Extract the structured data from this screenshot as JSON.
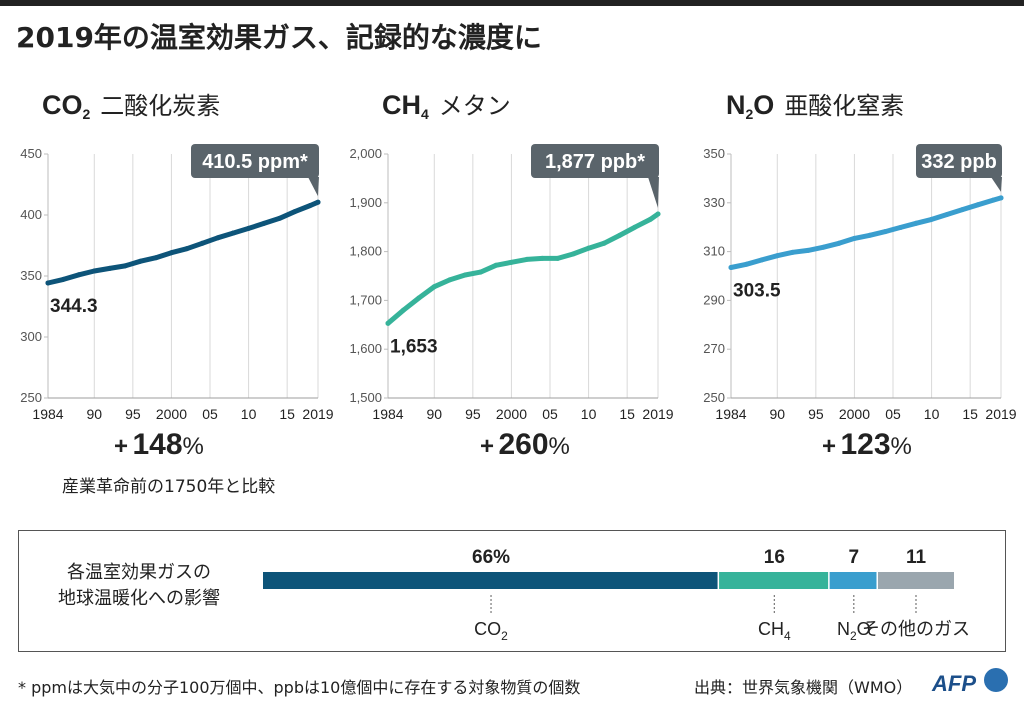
{
  "title": "2019年の温室効果ガス、記録的な濃度に",
  "chart_data": [
    {
      "type": "line",
      "title_formula": "CO",
      "title_subscript": "2",
      "title_jp": "二酸化炭素",
      "x": [
        1984,
        1986,
        1988,
        1990,
        1992,
        1994,
        1996,
        1998,
        2000,
        2002,
        2004,
        2006,
        2008,
        2010,
        2012,
        2014,
        2016,
        2018,
        2019
      ],
      "values": [
        344.3,
        347.2,
        351.0,
        354.1,
        356.2,
        358.3,
        362.1,
        365.0,
        369.1,
        372.4,
        376.8,
        381.3,
        385.2,
        389.0,
        393.1,
        397.2,
        402.8,
        407.8,
        410.5
      ],
      "ylim": [
        250,
        450
      ],
      "yticks": [
        "250",
        "300",
        "350",
        "400",
        "450"
      ],
      "xticks": [
        "1984",
        "90",
        "95",
        "2000",
        "05",
        "10",
        "15",
        "2019"
      ],
      "start_label": "344.3",
      "end_label": "410.5 ppm*",
      "increase": {
        "sign": "+",
        "value": "148",
        "unit": "%"
      },
      "note": "産業革命前の1750年と比較",
      "color": "#0d5479"
    },
    {
      "type": "line",
      "title_formula": "CH",
      "title_subscript": "4",
      "title_jp": "メタン",
      "x": [
        1984,
        1986,
        1988,
        1990,
        1992,
        1994,
        1996,
        1998,
        2000,
        2002,
        2004,
        2006,
        2008,
        2010,
        2012,
        2014,
        2016,
        2018,
        2019
      ],
      "values": [
        1653,
        1680,
        1705,
        1728,
        1742,
        1752,
        1758,
        1772,
        1778,
        1784,
        1786,
        1786,
        1795,
        1807,
        1817,
        1833,
        1850,
        1866,
        1877
      ],
      "ylim": [
        1500,
        2000
      ],
      "yticks": [
        "1,500",
        "1,600",
        "1,700",
        "1,800",
        "1,900",
        "2,000"
      ],
      "xticks": [
        "1984",
        "90",
        "95",
        "2000",
        "05",
        "10",
        "15",
        "2019"
      ],
      "start_label": "1,653",
      "end_label": "1,877 ppb*",
      "increase": {
        "sign": "+",
        "value": "260",
        "unit": "%"
      },
      "color": "#36b39a"
    },
    {
      "type": "line",
      "title_formula": "N",
      "title_subscript": "2",
      "title_suffix": "O",
      "title_jp": "亜酸化窒素",
      "x": [
        1984,
        1986,
        1988,
        1990,
        1992,
        1994,
        1996,
        1998,
        2000,
        2002,
        2004,
        2006,
        2008,
        2010,
        2012,
        2014,
        2016,
        2018,
        2019
      ],
      "values": [
        303.5,
        304.8,
        306.6,
        308.3,
        309.7,
        310.5,
        311.8,
        313.4,
        315.4,
        316.7,
        318.2,
        319.9,
        321.6,
        323.2,
        325.2,
        327.2,
        329.2,
        331.1,
        332.0
      ],
      "ylim": [
        250,
        350
      ],
      "yticks": [
        "250",
        "270",
        "290",
        "310",
        "330",
        "350"
      ],
      "xticks": [
        "1984",
        "90",
        "95",
        "2000",
        "05",
        "10",
        "15",
        "2019"
      ],
      "start_label": "303.5",
      "end_label": "332 ppb",
      "increase": {
        "sign": "+",
        "value": "123",
        "unit": "%"
      },
      "color": "#3a9ece"
    }
  ],
  "impact": {
    "label_line1": "各温室効果ガスの",
    "label_line2": "地球温暖化への影響",
    "segments": [
      {
        "name": "CO",
        "sub": "2",
        "suffix": "",
        "value": 66,
        "value_label": "66%",
        "color": "#0d5479"
      },
      {
        "name": "CH",
        "sub": "4",
        "suffix": "",
        "value": 16,
        "value_label": "16",
        "color": "#36b39a"
      },
      {
        "name": "N",
        "sub": "2",
        "suffix": "O",
        "value": 7,
        "value_label": "7",
        "color": "#3a9ece"
      },
      {
        "name": "その他のガス",
        "sub": "",
        "suffix": "",
        "value": 11,
        "value_label": "11",
        "color": "#9aa6ae"
      }
    ]
  },
  "footnote": "* ppmは大気中の分子100万個中、ppbは10億個中に存在する対象物質の個数",
  "source": "出典：世界気象機関（WMO）",
  "logo_text": "AFP"
}
